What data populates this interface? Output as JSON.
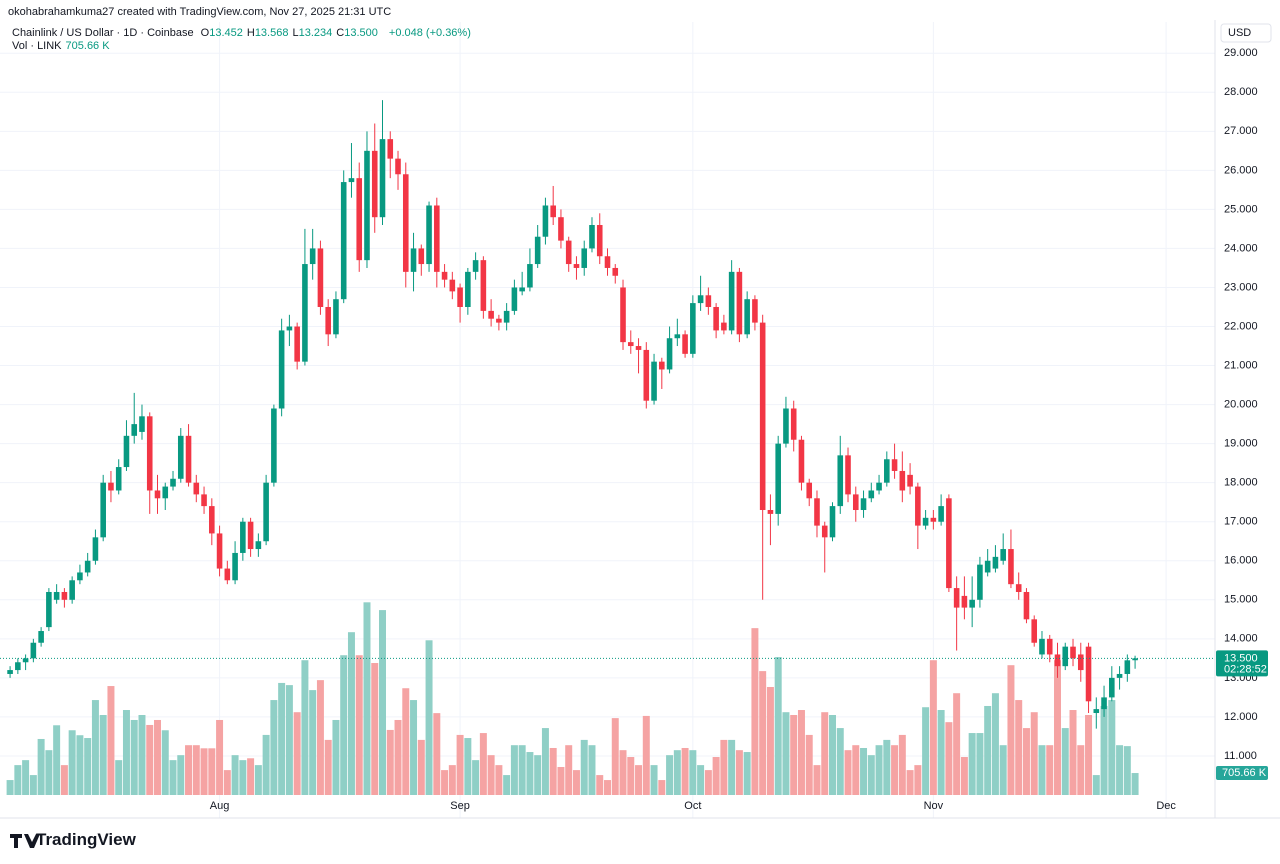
{
  "chart_data": {
    "type": "candlestick",
    "attribution": "okohabrahamkuma27 created with TradingView.com, Nov 27, 2025 21:31 UTC",
    "title": "Chainlink / US Dollar · 1D · Coinbase",
    "ohlc_legend": [
      {
        "label": "O",
        "value": "13.452"
      },
      {
        "label": "H",
        "value": "13.568"
      },
      {
        "label": "L",
        "value": "13.234"
      },
      {
        "label": "C",
        "value": "13.500"
      }
    ],
    "change": "+0.048 (+0.36%)",
    "volume_legend": {
      "label": "Vol · LINK",
      "value": "705.66 K"
    },
    "currency": "USD",
    "last_price_label": "13.500",
    "countdown": "02:28:52",
    "last_volume_label": "705.66 K",
    "brand": "TradingView",
    "up_color": "#089981",
    "down_color": "#f23645",
    "up_volume_color": "#8fcfc6",
    "down_volume_color": "#f5a3a3",
    "grid": true,
    "xlim": [
      -1.3,
      155.3
    ],
    "xticks": [
      {
        "value": 27,
        "label": "Aug"
      },
      {
        "value": 58,
        "label": "Sep"
      },
      {
        "value": 88,
        "label": "Oct"
      },
      {
        "value": 119,
        "label": "Nov"
      },
      {
        "value": 149,
        "label": "Dec"
      }
    ],
    "ylim": [
      10.0,
      29.8
    ],
    "yticks": [
      {
        "value": 11,
        "label": "11.000"
      },
      {
        "value": 12,
        "label": "12.000"
      },
      {
        "value": 13,
        "label": "13.000"
      },
      {
        "value": 14,
        "label": "14.000"
      },
      {
        "value": 15,
        "label": "15.000"
      },
      {
        "value": 16,
        "label": "16.000"
      },
      {
        "value": 17,
        "label": "17.000"
      },
      {
        "value": 18,
        "label": "18.000"
      },
      {
        "value": 19,
        "label": "19.000"
      },
      {
        "value": 20,
        "label": "20.000"
      },
      {
        "value": 21,
        "label": "21.000"
      },
      {
        "value": 22,
        "label": "22.000"
      },
      {
        "value": 23,
        "label": "23.000"
      },
      {
        "value": 24,
        "label": "24.000"
      },
      {
        "value": 25,
        "label": "25.000"
      },
      {
        "value": 26,
        "label": "26.000"
      },
      {
        "value": 27,
        "label": "27.000"
      },
      {
        "value": 28,
        "label": "28.000"
      },
      {
        "value": 29,
        "label": "29.000"
      }
    ],
    "volume_ylim": [
      0,
      6200
    ],
    "open": [
      13.1,
      13.2,
      13.4,
      13.5,
      13.9,
      14.3,
      15.0,
      15.2,
      15.0,
      15.5,
      15.7,
      16.0,
      16.6,
      18.0,
      17.8,
      18.4,
      19.2,
      19.3,
      19.7,
      17.8,
      17.6,
      17.9,
      18.1,
      19.2,
      18.0,
      17.7,
      17.4,
      16.7,
      15.8,
      15.5,
      16.2,
      17.0,
      16.3,
      16.5,
      18.0,
      19.9,
      21.9,
      22.0,
      21.1,
      23.6,
      24.0,
      22.5,
      21.8,
      22.7,
      25.7,
      25.8,
      23.7,
      26.5,
      24.8,
      26.8,
      26.3,
      25.9,
      23.4,
      24.0,
      23.6,
      25.1,
      23.4,
      23.2,
      23.0,
      22.5,
      23.4,
      23.7,
      22.4,
      22.2,
      22.1,
      22.4,
      22.9,
      23.0,
      23.6,
      24.3,
      25.1,
      24.8,
      24.2,
      23.6,
      23.5,
      24.0,
      24.6,
      23.8,
      23.5,
      23.0,
      21.6,
      21.5,
      21.4,
      20.1,
      21.1,
      20.9,
      21.7,
      21.8,
      21.3,
      22.6,
      22.8,
      22.5,
      22.1,
      21.9,
      23.4,
      21.8,
      22.7,
      22.1,
      17.3,
      17.2,
      19.0,
      19.9,
      19.1,
      18.0,
      17.6,
      16.9,
      16.6,
      17.4,
      18.7,
      17.7,
      17.3,
      17.6,
      17.8,
      18.0,
      18.6,
      18.3,
      18.2,
      17.9,
      16.9,
      17.1,
      17.0,
      17.6,
      15.3,
      15.1,
      14.8,
      15.0,
      15.7,
      15.8,
      16.0,
      16.3,
      15.4,
      15.2,
      14.5,
      13.6,
      14.0,
      13.6,
      13.3,
      13.8,
      13.6,
      13.8,
      12.1,
      12.2,
      12.5,
      13.0,
      13.1,
      13.452
    ],
    "high": [
      13.3,
      13.5,
      13.6,
      14.0,
      14.3,
      15.3,
      15.4,
      15.3,
      15.6,
      15.9,
      16.2,
      16.8,
      18.2,
      18.3,
      18.6,
      19.6,
      20.3,
      20.0,
      19.8,
      18.2,
      18.0,
      18.3,
      19.4,
      19.5,
      18.2,
      17.9,
      17.6,
      16.9,
      16.0,
      16.5,
      17.1,
      17.1,
      16.7,
      18.2,
      20.0,
      22.2,
      22.3,
      22.1,
      24.5,
      24.5,
      24.2,
      22.7,
      22.9,
      26.0,
      26.7,
      26.2,
      27.0,
      27.2,
      27.8,
      27.0,
      26.5,
      26.2,
      24.4,
      24.1,
      25.2,
      25.3,
      23.6,
      23.4,
      23.1,
      23.5,
      23.9,
      23.8,
      22.7,
      22.3,
      22.6,
      23.2,
      23.4,
      24.0,
      24.6,
      25.3,
      25.6,
      25.0,
      24.3,
      23.8,
      24.2,
      24.8,
      24.9,
      24.0,
      23.6,
      23.2,
      21.9,
      21.7,
      21.6,
      21.3,
      21.2,
      22.0,
      22.2,
      21.9,
      22.8,
      23.3,
      23.0,
      22.6,
      22.3,
      23.7,
      23.5,
      22.9,
      22.8,
      22.3,
      17.7,
      19.2,
      20.2,
      20.1,
      19.2,
      18.1,
      17.8,
      17.0,
      17.5,
      19.2,
      18.9,
      17.9,
      17.8,
      18.0,
      18.2,
      18.8,
      19.0,
      18.8,
      18.5,
      18.0,
      17.3,
      17.3,
      17.7,
      17.7,
      15.6,
      15.6,
      15.6,
      16.1,
      16.3,
      16.4,
      16.7,
      16.8,
      15.7,
      15.3,
      14.6,
      14.2,
      14.1,
      13.9,
      13.9,
      14.0,
      13.9,
      13.9,
      12.5,
      12.8,
      13.3,
      13.3,
      13.6,
      13.568
    ],
    "low": [
      13.0,
      13.1,
      13.2,
      13.4,
      13.8,
      14.2,
      14.9,
      14.8,
      14.9,
      15.4,
      15.6,
      15.9,
      16.5,
      17.5,
      17.7,
      18.3,
      19.0,
      19.1,
      17.2,
      17.2,
      17.3,
      17.8,
      18.0,
      17.9,
      17.5,
      17.2,
      16.4,
      15.6,
      15.4,
      15.4,
      16.0,
      16.1,
      16.1,
      16.4,
      17.9,
      19.7,
      21.5,
      20.9,
      21.0,
      23.2,
      22.3,
      21.5,
      21.7,
      22.6,
      25.3,
      23.4,
      23.5,
      24.4,
      24.6,
      25.8,
      25.5,
      23.0,
      22.9,
      23.3,
      23.4,
      23.0,
      23.0,
      22.7,
      22.1,
      22.3,
      23.2,
      22.2,
      22.0,
      21.9,
      21.9,
      22.3,
      22.8,
      22.9,
      23.5,
      24.1,
      24.6,
      24.0,
      23.4,
      23.2,
      23.3,
      23.9,
      23.6,
      23.3,
      23.1,
      21.4,
      21.3,
      20.8,
      19.9,
      20.0,
      20.4,
      20.8,
      21.5,
      21.2,
      21.2,
      22.4,
      22.3,
      21.7,
      21.8,
      21.8,
      21.6,
      21.7,
      21.9,
      15.0,
      16.4,
      16.9,
      18.9,
      18.8,
      17.8,
      17.4,
      16.6,
      15.7,
      16.5,
      17.2,
      17.5,
      17.0,
      17.1,
      17.5,
      17.7,
      17.9,
      18.1,
      17.5,
      17.7,
      16.3,
      16.8,
      16.8,
      16.9,
      15.2,
      13.7,
      14.5,
      14.3,
      14.8,
      15.6,
      15.7,
      15.9,
      15.3,
      15.0,
      14.4,
      13.8,
      13.5,
      13.4,
      13.0,
      13.2,
      13.3,
      12.9,
      12.1,
      11.7,
      12.0,
      12.4,
      12.7,
      12.9,
      13.234
    ],
    "close": [
      13.2,
      13.4,
      13.5,
      13.9,
      14.2,
      15.2,
      15.2,
      15.0,
      15.5,
      15.7,
      16.0,
      16.6,
      18.0,
      17.8,
      18.4,
      19.2,
      19.5,
      19.7,
      17.8,
      17.6,
      17.9,
      18.1,
      19.2,
      18.0,
      17.7,
      17.4,
      16.7,
      15.8,
      15.5,
      16.2,
      17.0,
      16.3,
      16.5,
      18.0,
      19.9,
      21.9,
      22.0,
      21.1,
      23.6,
      24.0,
      22.5,
      21.8,
      22.7,
      25.7,
      25.8,
      23.7,
      26.5,
      24.8,
      26.8,
      26.3,
      25.9,
      23.4,
      24.0,
      23.6,
      25.1,
      23.4,
      23.2,
      22.9,
      22.5,
      23.4,
      23.7,
      22.4,
      22.2,
      22.1,
      22.4,
      23.0,
      23.0,
      23.6,
      24.3,
      25.1,
      24.8,
      24.2,
      23.6,
      23.5,
      24.0,
      24.6,
      23.8,
      23.5,
      23.3,
      21.6,
      21.5,
      21.4,
      20.1,
      21.1,
      20.9,
      21.7,
      21.8,
      21.3,
      22.6,
      22.8,
      22.5,
      21.9,
      21.9,
      23.4,
      21.8,
      22.7,
      22.1,
      17.3,
      17.2,
      19.0,
      19.9,
      19.1,
      18.0,
      17.6,
      16.9,
      16.6,
      17.4,
      18.7,
      17.7,
      17.3,
      17.6,
      17.8,
      18.0,
      18.6,
      18.3,
      17.8,
      17.9,
      16.9,
      17.1,
      17.0,
      17.4,
      15.3,
      14.8,
      14.8,
      15.0,
      15.9,
      16.0,
      16.1,
      16.3,
      15.4,
      15.2,
      14.5,
      13.9,
      14.0,
      13.6,
      13.3,
      13.8,
      13.5,
      13.2,
      12.4,
      12.2,
      12.5,
      13.0,
      13.1,
      13.45,
      13.5
    ],
    "volume": [
      480,
      960,
      1120,
      640,
      1800,
      1440,
      2240,
      960,
      2080,
      1920,
      1830,
      3050,
      2570,
      3500,
      1120,
      2730,
      2410,
      2570,
      2250,
      2410,
      2080,
      1120,
      1280,
      1600,
      1600,
      1500,
      1500,
      2410,
      800,
      1280,
      1120,
      1180,
      960,
      1930,
      3050,
      3600,
      3530,
      2660,
      4330,
      3370,
      3690,
      1770,
      2410,
      4490,
      5230,
      4490,
      6190,
      4240,
      5940,
      2090,
      2410,
      3430,
      3050,
      1770,
      4970,
      2630,
      800,
      960,
      1930,
      1830,
      1120,
      1990,
      1280,
      960,
      640,
      1600,
      1600,
      1380,
      1280,
      2150,
      1510,
      900,
      1600,
      800,
      1770,
      1600,
      640,
      480,
      2470,
      1440,
      1220,
      960,
      2540,
      960,
      480,
      1280,
      1440,
      1510,
      1440,
      960,
      800,
      1220,
      1770,
      1770,
      1440,
      1380,
      5360,
      3980,
      3470,
      4430,
      2660,
      2570,
      2730,
      1930,
      960,
      2660,
      2570,
      2150,
      1440,
      1600,
      1510,
      1280,
      1600,
      1770,
      1600,
      1930,
      800,
      960,
      2820,
      4330,
      2730,
      2340,
      3270,
      1220,
      1990,
      1990,
      2860,
      3270,
      1600,
      4170,
      3050,
      2150,
      2660,
      1600,
      1600,
      4330,
      2150,
      2730,
      1600,
      2570,
      640,
      2860,
      3050,
      1600,
      1570,
      705.66
    ]
  }
}
